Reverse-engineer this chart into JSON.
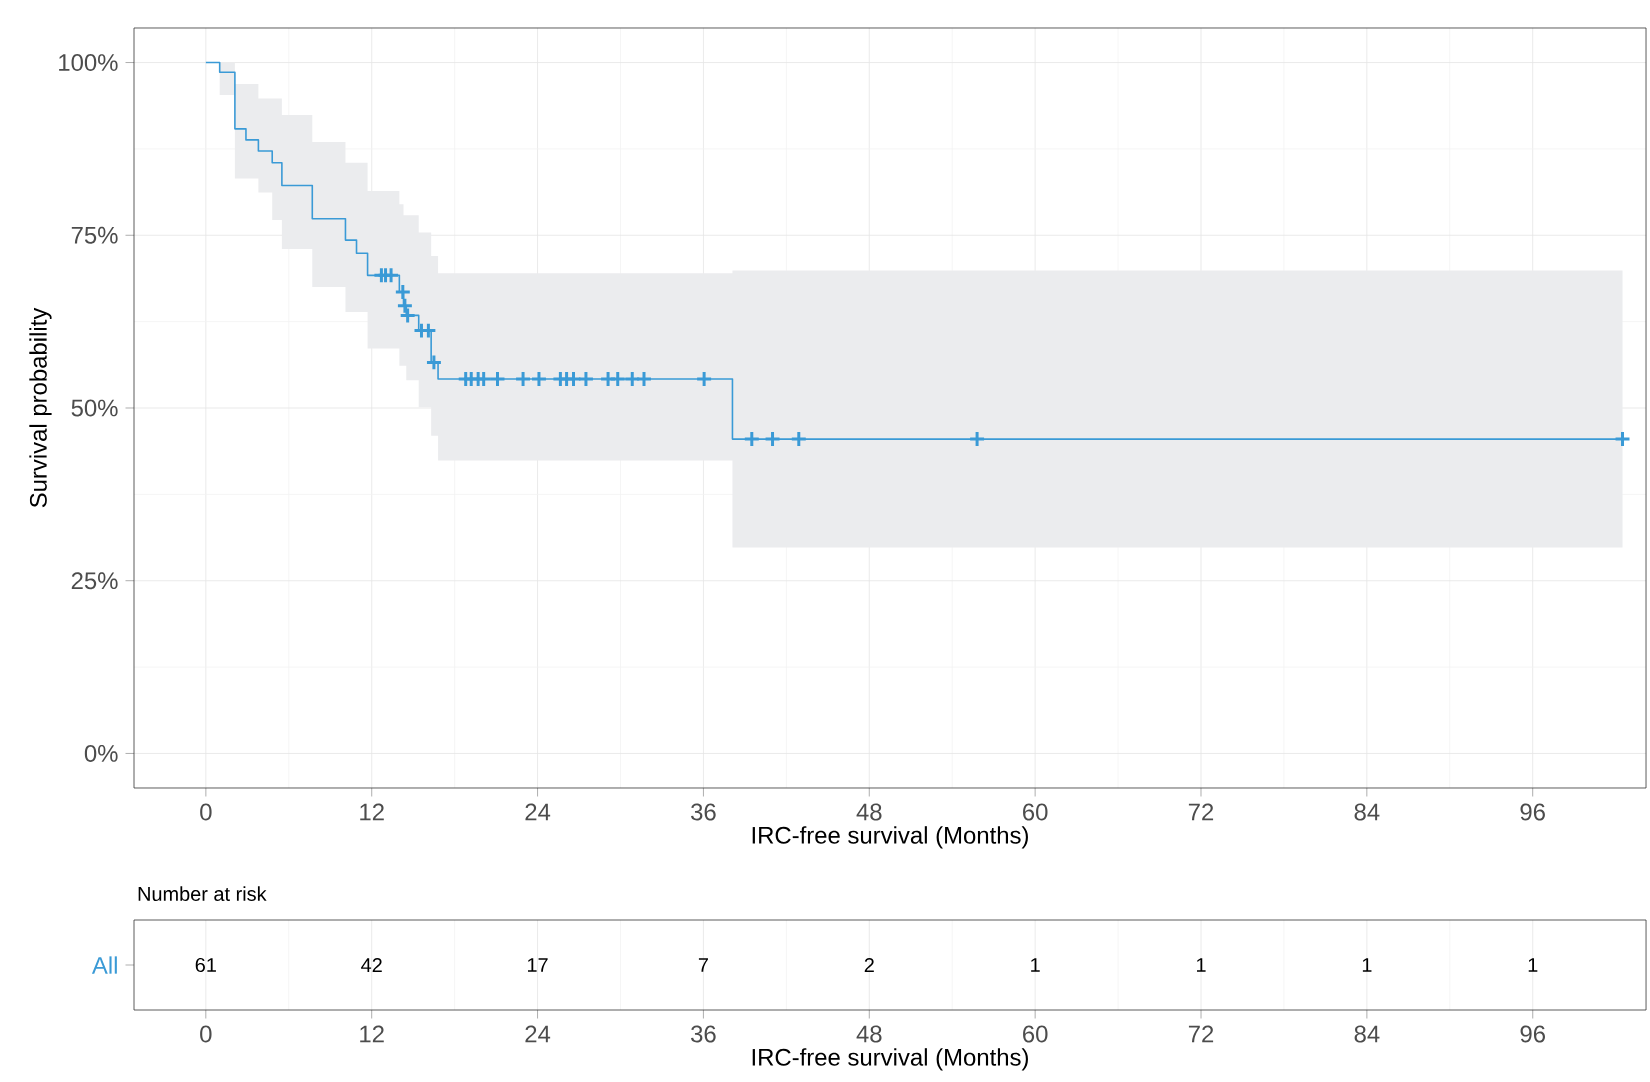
{
  "chart_data": [
    {
      "type": "step",
      "xlabel": "IRC-free survival (Months)",
      "ylabel": "Survival probability",
      "xlim": [
        -5.2,
        104.2
      ],
      "ylim": [
        -5,
        105
      ],
      "xticks": [
        0,
        12,
        24,
        36,
        48,
        60,
        72,
        84,
        96
      ],
      "yticks": [
        {
          "value": 0,
          "label": "0%"
        },
        {
          "value": 25,
          "label": "25%"
        },
        {
          "value": 50,
          "label": "50%"
        },
        {
          "value": 75,
          "label": "75%"
        },
        {
          "value": 100,
          "label": "100%"
        }
      ],
      "grid": true,
      "series": [
        {
          "type": "step",
          "color": "#3a9ad6",
          "marker": "none",
          "line_style": "solid",
          "x": [
            0,
            1.0,
            2.1,
            2.9,
            3.8,
            4.8,
            5.5,
            7.7,
            10.1,
            10.9,
            11.7,
            14.0,
            14.3,
            14.5,
            15.4,
            16.3,
            16.8,
            38.1,
            102.5
          ],
          "values": [
            100,
            98.6,
            90.4,
            88.8,
            87.2,
            85.5,
            82.2,
            77.4,
            74.3,
            72.4,
            69.2,
            66.8,
            64.8,
            63.4,
            61.2,
            56.6,
            54.2,
            45.5,
            45.5
          ],
          "upper": [
            100,
            100,
            96.9,
            96.9,
            94.8,
            94.8,
            92.4,
            88.5,
            85.5,
            85.5,
            81.4,
            79.5,
            77.9,
            77.9,
            75.4,
            72,
            69.5,
            69.9,
            69.9
          ],
          "lower": [
            100,
            95.3,
            83.2,
            83.2,
            81.2,
            77.2,
            73.0,
            67.5,
            63.9,
            63.9,
            58.6,
            56.1,
            56.1,
            54,
            50.1,
            46,
            42.4,
            29.8,
            29.8
          ]
        },
        {
          "type": "scatter",
          "color": "#3a9ad6",
          "marker": "cross",
          "x": [
            12.7,
            13.0,
            13.4,
            14.25,
            14.4,
            14.6,
            15.6,
            16.1,
            16.5,
            18.8,
            19.2,
            19.7,
            20.1,
            21.1,
            22.95,
            24.1,
            25.65,
            26.1,
            26.6,
            27.5,
            29.1,
            29.8,
            30.85,
            31.7,
            36.05,
            39.5,
            41.0,
            42.9,
            55.8,
            102.5
          ],
          "values": [
            69.2,
            69.2,
            69.2,
            66.8,
            64.8,
            63.4,
            61.2,
            61.2,
            56.6,
            54.2,
            54.2,
            54.2,
            54.2,
            54.2,
            54.2,
            54.2,
            54.2,
            54.2,
            54.2,
            54.2,
            54.2,
            54.2,
            54.2,
            54.2,
            54.2,
            45.5,
            45.5,
            45.5,
            45.5,
            45.5
          ]
        }
      ]
    },
    {
      "type": "heatmap",
      "title": "Number at risk",
      "xlabel": "IRC-free survival (Months)",
      "categories": [
        "0",
        "12",
        "24",
        "36",
        "48",
        "60",
        "72",
        "84",
        "96"
      ],
      "y_categories": [
        "All"
      ],
      "grid": true,
      "cells": [
        [
          null,
          null,
          null,
          null,
          null,
          null,
          null,
          null,
          null
        ]
      ],
      "cell_labels": [
        [
          "61",
          "42",
          "17",
          "7",
          "2",
          "1",
          "1",
          "1",
          "1"
        ]
      ]
    }
  ]
}
